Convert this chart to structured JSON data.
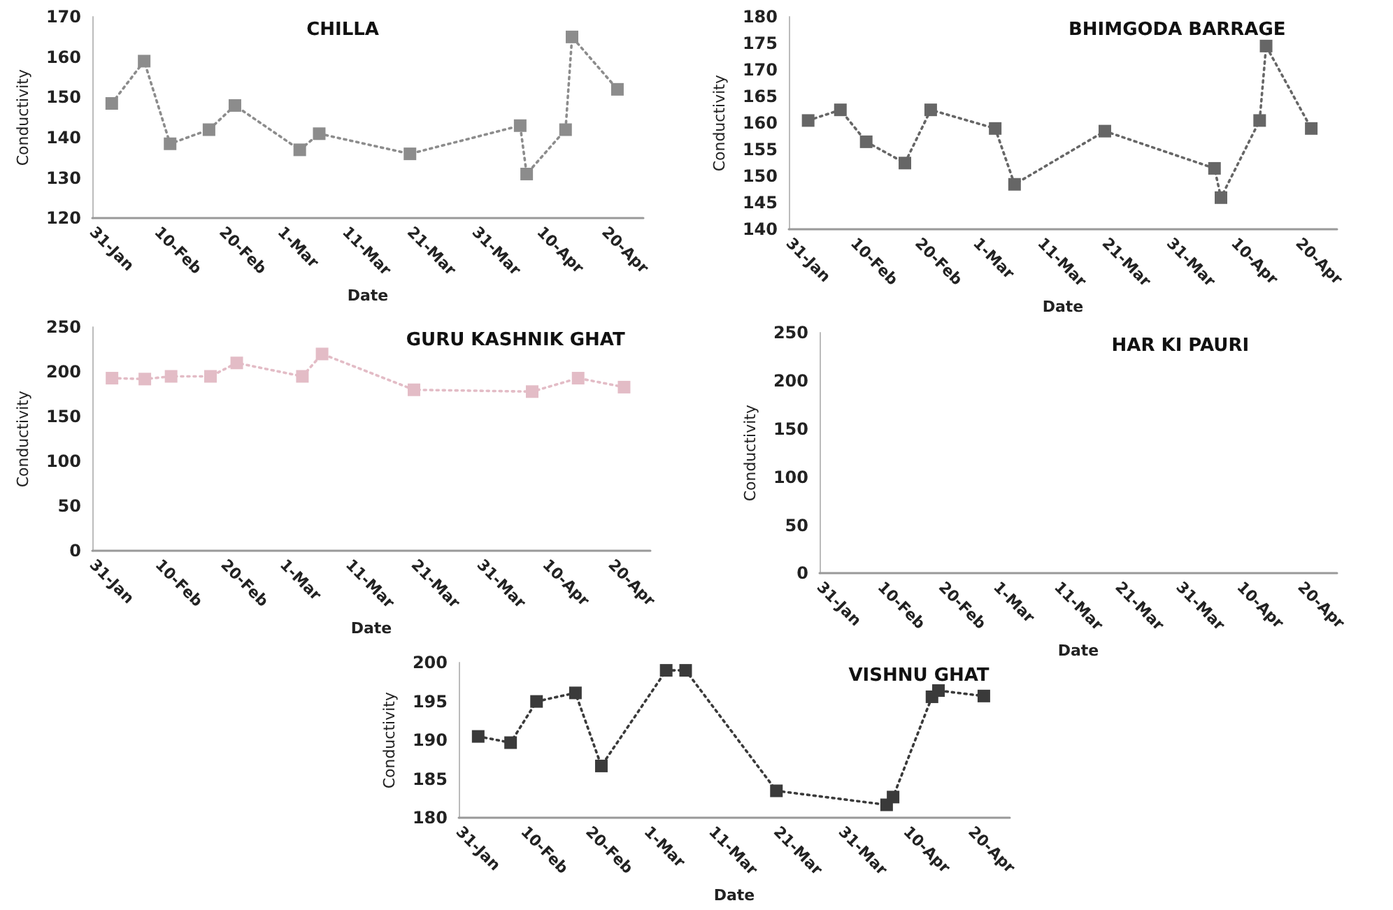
{
  "chart_data": [
    {
      "type": "line",
      "title": "CHILLA",
      "xlabel": "Date",
      "ylabel": "Conductivity",
      "x": [
        "--02-03",
        "--02-08",
        "--02-12",
        "--02-18",
        "--02-22",
        "--03-04",
        "--03-07",
        "--03-21",
        "--04-07",
        "--04-08",
        "--04-14",
        "--04-15",
        "--04-22"
      ],
      "series": [
        {
          "color": "#8c8c8c",
          "values": [
            148.5,
            159,
            138.5,
            142,
            148,
            137,
            141,
            136,
            143,
            131,
            142,
            165,
            152
          ]
        }
      ],
      "xlim": [
        "--01-31",
        "--04-26"
      ],
      "xticks": [
        {
          "value": "--01-31",
          "label": "31-Jan"
        },
        {
          "value": "--02-10",
          "label": "10-Feb"
        },
        {
          "value": "--02-20",
          "label": "20-Feb"
        },
        {
          "value": "--03-01",
          "label": "1-Mar"
        },
        {
          "value": "--03-11",
          "label": "11-Mar"
        },
        {
          "value": "--03-21",
          "label": "21-Mar"
        },
        {
          "value": "--03-31",
          "label": "31-Mar"
        },
        {
          "value": "--04-10",
          "label": "10-Apr"
        },
        {
          "value": "--04-20",
          "label": "20-Apr"
        }
      ],
      "ylim": [
        120,
        170
      ],
      "yticks": [
        120,
        130,
        140,
        150,
        160,
        170
      ],
      "grid": false,
      "marker": "square",
      "line_style": "dotted"
    },
    {
      "type": "line",
      "title": "BHIMGODA BARRAGE",
      "xlabel": "Date",
      "ylabel": "Conductivity",
      "x": [
        "--02-03",
        "--02-08",
        "--02-12",
        "--02-18",
        "--02-22",
        "--03-04",
        "--03-07",
        "--03-21",
        "--04-07",
        "--04-08",
        "--04-14",
        "--04-15",
        "--04-22"
      ],
      "series": [
        {
          "color": "#666666",
          "values": [
            160.5,
            162.5,
            156.5,
            152.5,
            162.5,
            159,
            148.5,
            158.5,
            151.5,
            146,
            160.5,
            174.5,
            159
          ]
        }
      ],
      "xlim": [
        "--01-31",
        "--04-26"
      ],
      "xticks": [
        {
          "value": "--01-31",
          "label": "31-Jan"
        },
        {
          "value": "--02-10",
          "label": "10-Feb"
        },
        {
          "value": "--02-20",
          "label": "20-Feb"
        },
        {
          "value": "--03-01",
          "label": "1-Mar"
        },
        {
          "value": "--03-11",
          "label": "11-Mar"
        },
        {
          "value": "--03-21",
          "label": "21-Mar"
        },
        {
          "value": "--03-31",
          "label": "31-Mar"
        },
        {
          "value": "--04-10",
          "label": "10-Apr"
        },
        {
          "value": "--04-20",
          "label": "20-Apr"
        }
      ],
      "ylim": [
        140,
        180
      ],
      "yticks": [
        140,
        145,
        150,
        155,
        160,
        165,
        170,
        175,
        180
      ],
      "grid": false,
      "marker": "square",
      "line_style": "dotted"
    },
    {
      "type": "line",
      "title": "GURU KASHNIK GHAT",
      "xlabel": "Date",
      "ylabel": "Conductivity",
      "x": [
        "--02-03",
        "--02-08",
        "--02-12",
        "--02-18",
        "--02-22",
        "--03-04",
        "--03-07",
        "--03-21",
        "--04-08",
        "--04-15",
        "--04-22"
      ],
      "series": [
        {
          "color": "#e3bcc6",
          "values": [
            193,
            192,
            195,
            195,
            210,
            195,
            220,
            180,
            178,
            193,
            183
          ]
        }
      ],
      "xlim": [
        "--01-31",
        "--04-26"
      ],
      "xticks": [
        {
          "value": "--01-31",
          "label": "31-Jan"
        },
        {
          "value": "--02-10",
          "label": "10-Feb"
        },
        {
          "value": "--02-20",
          "label": "20-Feb"
        },
        {
          "value": "--03-01",
          "label": "1-Mar"
        },
        {
          "value": "--03-11",
          "label": "11-Mar"
        },
        {
          "value": "--03-21",
          "label": "21-Mar"
        },
        {
          "value": "--03-31",
          "label": "31-Mar"
        },
        {
          "value": "--04-10",
          "label": "10-Apr"
        },
        {
          "value": "--04-20",
          "label": "20-Apr"
        }
      ],
      "ylim": [
        0,
        250
      ],
      "yticks": [
        0,
        50,
        100,
        150,
        200,
        250
      ],
      "grid": false,
      "marker": "square",
      "line_style": "dotted"
    },
    {
      "type": "line",
      "title": "HAR KI PAURI",
      "xlabel": "Date",
      "ylabel": "Conductivity",
      "xlim": [
        "--01-31",
        "--04-26"
      ],
      "xticks": [
        {
          "value": "--01-31",
          "label": "31-Jan"
        },
        {
          "value": "--02-10",
          "label": "10-Feb"
        },
        {
          "value": "--02-20",
          "label": "20-Feb"
        },
        {
          "value": "--03-01",
          "label": "1-Mar"
        },
        {
          "value": "--03-11",
          "label": "11-Mar"
        },
        {
          "value": "--03-21",
          "label": "21-Mar"
        },
        {
          "value": "--03-31",
          "label": "31-Mar"
        },
        {
          "value": "--04-10",
          "label": "10-Apr"
        },
        {
          "value": "--04-20",
          "label": "20-Apr"
        }
      ],
      "ylim": [
        0,
        250
      ],
      "yticks": [
        0,
        50,
        100,
        150,
        200,
        250
      ],
      "grid": false
    },
    {
      "type": "line",
      "title": "VISHNU GHAT",
      "xlabel": "Date",
      "ylabel": "Conductivity",
      "x": [
        "--02-03",
        "--02-08",
        "--02-12",
        "--02-18",
        "--02-22",
        "--03-04",
        "--03-07",
        "--03-21",
        "--04-07",
        "--04-08",
        "--04-14",
        "--04-15",
        "--04-22"
      ],
      "series": [
        {
          "color": "#3a3a3a",
          "values": [
            190.5,
            189.7,
            195,
            196.1,
            186.7,
            199,
            199,
            183.5,
            181.7,
            182.7,
            195.6,
            196.4,
            195.7
          ]
        }
      ],
      "xlim": [
        "--01-31",
        "--04-26"
      ],
      "xticks": [
        {
          "value": "--01-31",
          "label": "31-Jan"
        },
        {
          "value": "--02-10",
          "label": "10-Feb"
        },
        {
          "value": "--02-20",
          "label": "20-Feb"
        },
        {
          "value": "--03-01",
          "label": "1-Mar"
        },
        {
          "value": "--03-11",
          "label": "11-Mar"
        },
        {
          "value": "--03-21",
          "label": "21-Mar"
        },
        {
          "value": "--03-31",
          "label": "31-Mar"
        },
        {
          "value": "--04-10",
          "label": "10-Apr"
        },
        {
          "value": "--04-20",
          "label": "20-Apr"
        }
      ],
      "ylim": [
        180,
        200
      ],
      "yticks": [
        180,
        185,
        190,
        195,
        200
      ],
      "grid": false,
      "marker": "square",
      "line_style": "dotted"
    }
  ]
}
